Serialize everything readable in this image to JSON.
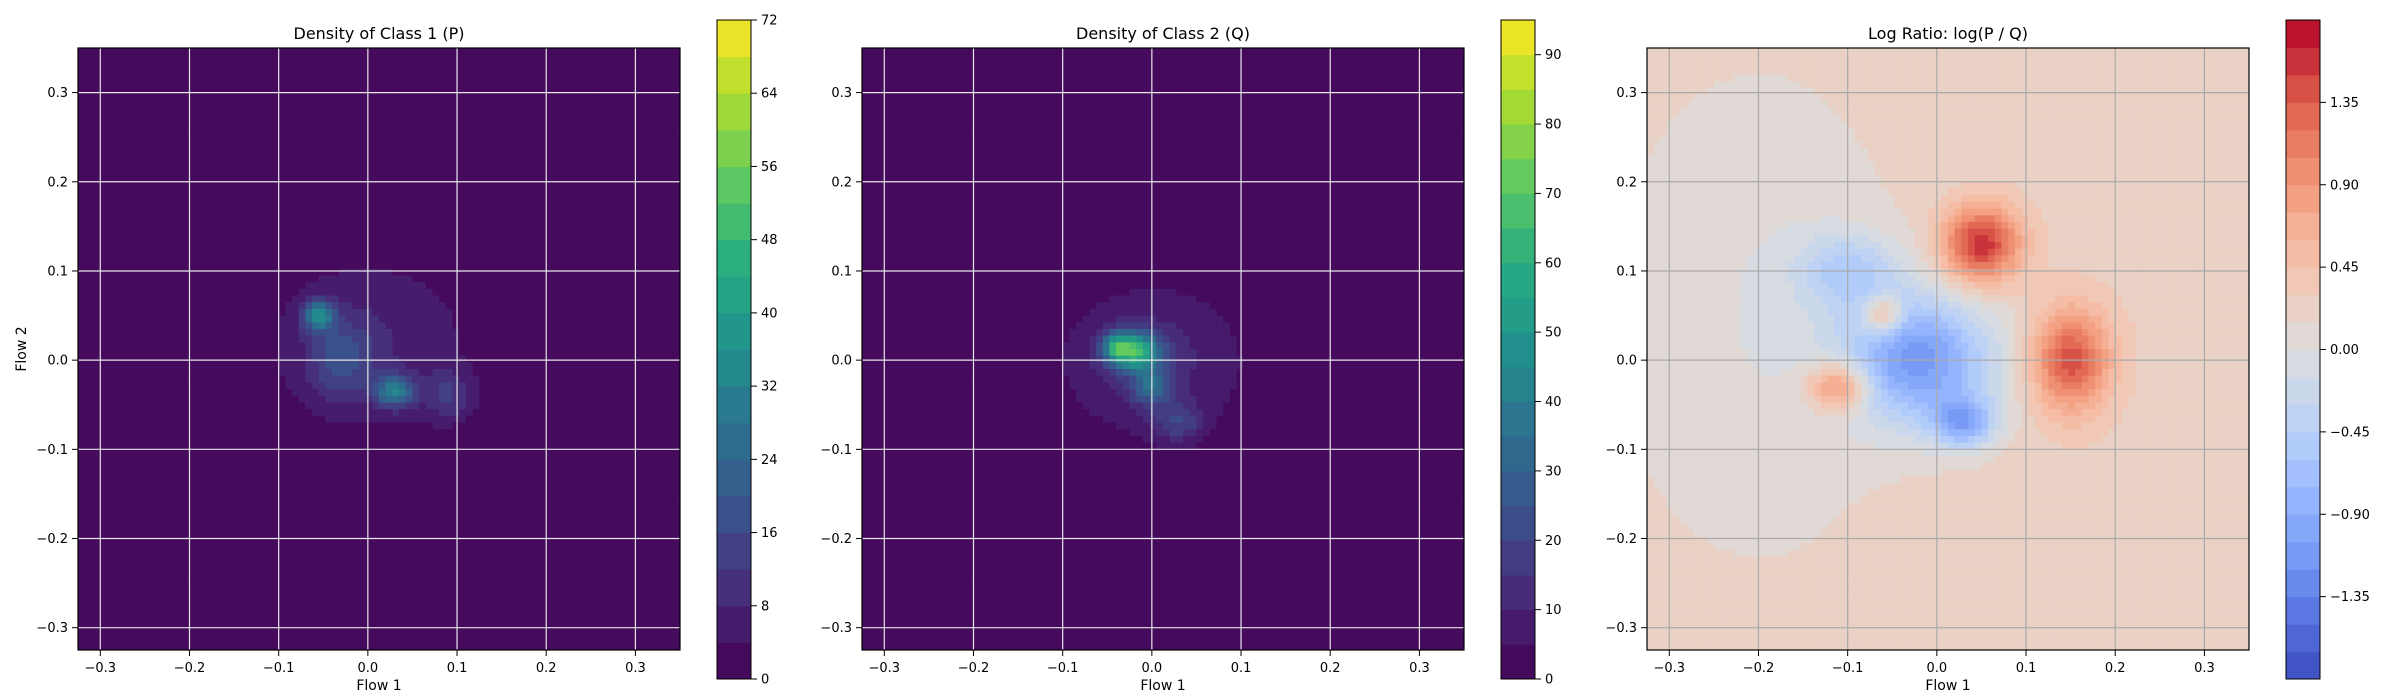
{
  "chart_data": [
    {
      "type": "heatmap",
      "title": "Density of Class 1 (P)",
      "xlabel": "Flow 1",
      "ylabel": "Flow 2",
      "xlim": [
        -0.325,
        0.35
      ],
      "ylim": [
        -0.325,
        0.35
      ],
      "x_ticks": [
        "−0.3",
        "−0.2",
        "−0.1",
        "0.0",
        "0.1",
        "0.2",
        "0.3"
      ],
      "y_ticks": [
        "−0.3",
        "−0.2",
        "−0.1",
        "0.0",
        "0.1",
        "0.2",
        "0.3"
      ],
      "grid": true,
      "colormap": "viridis",
      "colorbar_range": [
        0,
        72
      ],
      "colorbar_levels": 18,
      "colorbar_ticks": [
        "0",
        "8",
        "16",
        "24",
        "32",
        "40",
        "48",
        "56",
        "64",
        "72"
      ],
      "blobs": [
        {
          "x": 0.0,
          "y": 0.02,
          "sx": 0.085,
          "sy": 0.07,
          "peak": 8
        },
        {
          "x": -0.055,
          "y": 0.05,
          "sx": 0.012,
          "sy": 0.012,
          "peak": 30
        },
        {
          "x": 0.03,
          "y": -0.035,
          "sx": 0.015,
          "sy": 0.012,
          "peak": 28
        },
        {
          "x": -0.03,
          "y": 0.0,
          "sx": 0.025,
          "sy": 0.03,
          "peak": 12
        },
        {
          "x": 0.09,
          "y": -0.04,
          "sx": 0.02,
          "sy": 0.02,
          "peak": 10
        }
      ]
    },
    {
      "type": "heatmap",
      "title": "Density of Class 2 (Q)",
      "xlabel": "Flow 1",
      "ylabel": "",
      "xlim": [
        -0.325,
        0.35
      ],
      "ylim": [
        -0.325,
        0.35
      ],
      "x_ticks": [
        "−0.3",
        "−0.2",
        "−0.1",
        "0.0",
        "0.1",
        "0.2",
        "0.3"
      ],
      "y_ticks": [
        "−0.3",
        "−0.2",
        "−0.1",
        "0.0",
        "0.1",
        "0.2",
        "0.3"
      ],
      "grid": true,
      "colormap": "viridis",
      "colorbar_range": [
        0,
        95
      ],
      "colorbar_levels": 19,
      "colorbar_ticks": [
        "0",
        "10",
        "20",
        "30",
        "40",
        "50",
        "60",
        "70",
        "80",
        "90"
      ],
      "blobs": [
        {
          "x": 0.0,
          "y": 0.0,
          "sx": 0.075,
          "sy": 0.06,
          "peak": 12
        },
        {
          "x": -0.02,
          "y": 0.01,
          "sx": 0.02,
          "sy": 0.015,
          "peak": 55
        },
        {
          "x": -0.04,
          "y": 0.015,
          "sx": 0.01,
          "sy": 0.01,
          "peak": 30
        },
        {
          "x": 0.0,
          "y": -0.03,
          "sx": 0.015,
          "sy": 0.015,
          "peak": 25
        },
        {
          "x": 0.03,
          "y": -0.07,
          "sx": 0.02,
          "sy": 0.015,
          "peak": 15
        }
      ]
    },
    {
      "type": "heatmap",
      "title": "Log Ratio: log(P / Q)",
      "xlabel": "Flow 1",
      "ylabel": "",
      "xlim": [
        -0.325,
        0.35
      ],
      "ylim": [
        -0.325,
        0.35
      ],
      "x_ticks": [
        "−0.3",
        "−0.2",
        "−0.1",
        "0.0",
        "0.1",
        "0.2",
        "0.3"
      ],
      "y_ticks": [
        "−0.3",
        "−0.2",
        "−0.1",
        "0.0",
        "0.1",
        "0.2",
        "0.3"
      ],
      "grid": true,
      "colormap": "coolwarm",
      "colorbar_range": [
        -1.8,
        1.8
      ],
      "colorbar_levels": 24,
      "colorbar_ticks": [
        "−1.35",
        "−0.90",
        "−0.45",
        "0.00",
        "0.45",
        "0.90",
        "1.35"
      ],
      "colorbar_tick_values": [
        -1.35,
        -0.9,
        -0.45,
        0,
        0.45,
        0.9,
        1.35
      ],
      "background": 0.25,
      "blobs": [
        {
          "x": 0.05,
          "y": 0.13,
          "sx": 0.03,
          "sy": 0.03,
          "peak": 1.4
        },
        {
          "x": 0.15,
          "y": 0.0,
          "sx": 0.03,
          "sy": 0.04,
          "peak": 1.2
        },
        {
          "x": -0.11,
          "y": -0.03,
          "sx": 0.025,
          "sy": 0.02,
          "peak": 1.0
        },
        {
          "x": -0.06,
          "y": 0.05,
          "sx": 0.015,
          "sy": 0.015,
          "peak": 0.9
        },
        {
          "x": -0.02,
          "y": 0.0,
          "sx": 0.06,
          "sy": 0.05,
          "peak": -1.3
        },
        {
          "x": 0.03,
          "y": -0.07,
          "sx": 0.025,
          "sy": 0.02,
          "peak": -1.0
        },
        {
          "x": -0.1,
          "y": 0.1,
          "sx": 0.04,
          "sy": 0.03,
          "peak": -0.6
        },
        {
          "x": -0.2,
          "y": 0.05,
          "sx": 0.12,
          "sy": 0.2,
          "peak": -0.25
        }
      ]
    }
  ]
}
